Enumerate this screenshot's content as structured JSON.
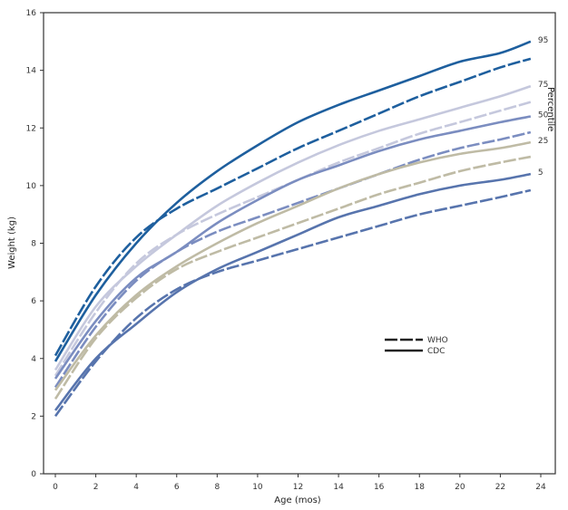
{
  "chart_data": {
    "type": "line",
    "title": "",
    "xlabel": "Age (mos)",
    "ylabel": "Weight (kg)",
    "xlim": [
      0,
      24
    ],
    "ylim": [
      0,
      16
    ],
    "xticks": [
      0,
      2,
      4,
      6,
      8,
      10,
      12,
      14,
      16,
      18,
      20,
      22,
      24
    ],
    "yticks": [
      0,
      2,
      4,
      6,
      8,
      10,
      12,
      14,
      16
    ],
    "grid": false,
    "percentile_axis_label": "Percentile",
    "percentile_labels": [
      "95",
      "75",
      "50",
      "25",
      "5"
    ],
    "legend": {
      "placement": "center-right",
      "entries": [
        {
          "label": "WHO",
          "style": "dashed"
        },
        {
          "label": "CDC",
          "style": "solid"
        }
      ]
    },
    "x": [
      0,
      2,
      4,
      6,
      8,
      10,
      12,
      14,
      16,
      18,
      20,
      22,
      23.5
    ],
    "series": [
      {
        "source": "CDC",
        "percentile": "95",
        "style": "solid",
        "color": "#1e5f9e",
        "values": [
          3.9,
          6.2,
          8.0,
          9.4,
          10.5,
          11.4,
          12.2,
          12.8,
          13.3,
          13.8,
          14.3,
          14.6,
          15.0
        ]
      },
      {
        "source": "WHO",
        "percentile": "95",
        "style": "dashed",
        "color": "#1e5f9e",
        "values": [
          4.1,
          6.5,
          8.2,
          9.2,
          9.9,
          10.6,
          11.3,
          11.9,
          12.5,
          13.1,
          13.6,
          14.1,
          14.4
        ]
      },
      {
        "source": "CDC",
        "percentile": "75",
        "style": "solid",
        "color": "#c5c8dd",
        "values": [
          3.6,
          5.8,
          7.2,
          8.3,
          9.3,
          10.1,
          10.8,
          11.4,
          11.9,
          12.3,
          12.7,
          13.1,
          13.45
        ]
      },
      {
        "source": "WHO",
        "percentile": "75",
        "style": "dashed",
        "color": "#c5c8dd",
        "values": [
          3.4,
          5.6,
          7.3,
          8.3,
          9.0,
          9.6,
          10.2,
          10.8,
          11.3,
          11.8,
          12.2,
          12.6,
          12.9
        ]
      },
      {
        "source": "CDC",
        "percentile": "50",
        "style": "solid",
        "color": "#7b8dc0",
        "values": [
          3.3,
          5.3,
          6.8,
          7.7,
          8.7,
          9.5,
          10.2,
          10.7,
          11.2,
          11.6,
          11.9,
          12.2,
          12.4
        ]
      },
      {
        "source": "WHO",
        "percentile": "50",
        "style": "dashed",
        "color": "#7b8dc0",
        "values": [
          3.0,
          5.1,
          6.7,
          7.7,
          8.4,
          8.9,
          9.4,
          9.9,
          10.4,
          10.9,
          11.3,
          11.6,
          11.85
        ]
      },
      {
        "source": "CDC",
        "percentile": "25",
        "style": "solid",
        "color": "#bfbba5",
        "values": [
          2.9,
          4.8,
          6.2,
          7.2,
          8.0,
          8.7,
          9.3,
          9.9,
          10.4,
          10.8,
          11.1,
          11.3,
          11.5
        ]
      },
      {
        "source": "WHO",
        "percentile": "25",
        "style": "dashed",
        "color": "#bfbba5",
        "values": [
          2.6,
          4.7,
          6.1,
          7.1,
          7.7,
          8.2,
          8.7,
          9.2,
          9.7,
          10.1,
          10.5,
          10.8,
          11.0
        ]
      },
      {
        "source": "CDC",
        "percentile": "5",
        "style": "solid",
        "color": "#5774ad",
        "values": [
          2.2,
          4.0,
          5.2,
          6.3,
          7.1,
          7.7,
          8.3,
          8.9,
          9.3,
          9.7,
          10.0,
          10.2,
          10.4
        ]
      },
      {
        "source": "WHO",
        "percentile": "5",
        "style": "dashed",
        "color": "#5774ad",
        "values": [
          2.0,
          3.9,
          5.4,
          6.4,
          7.0,
          7.4,
          7.8,
          8.2,
          8.6,
          9.0,
          9.3,
          9.6,
          9.84
        ]
      }
    ]
  }
}
